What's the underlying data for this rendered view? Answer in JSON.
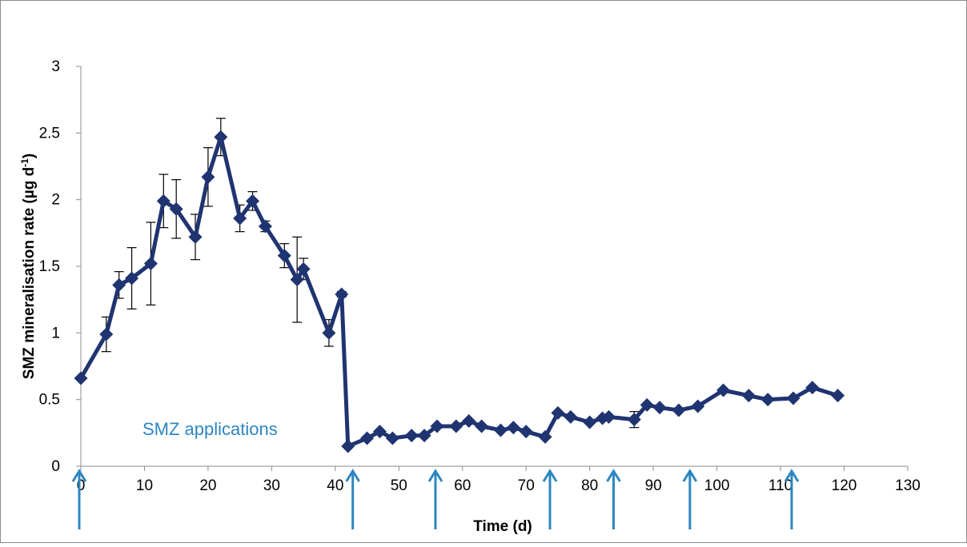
{
  "chart_data": {
    "type": "line",
    "xlabel": "Time (d)",
    "ylabel_main": "SMZ mineralisation rate (µg d",
    "ylabel_sup": "-1",
    "ylabel_close": ")",
    "xlim": [
      0,
      130
    ],
    "ylim": [
      0,
      3
    ],
    "x_ticks": [
      0,
      10,
      20,
      30,
      40,
      50,
      60,
      70,
      80,
      90,
      100,
      110,
      120,
      130
    ],
    "y_ticks": [
      0,
      0.5,
      1,
      1.5,
      2,
      2.5,
      3
    ],
    "y_tick_labels": [
      "0",
      "0.5",
      "1",
      "1.5",
      "2",
      "2.5",
      "3"
    ],
    "grid": false,
    "series_color": "#1f3470",
    "arrow_color": "#2e86c1",
    "annotation": "SMZ applications",
    "application_days": [
      0,
      43,
      56,
      74,
      84,
      96,
      112
    ],
    "x": [
      0,
      4,
      6,
      8,
      11,
      13,
      15,
      18,
      20,
      22,
      25,
      27,
      29,
      32,
      34,
      35,
      39,
      41,
      42,
      45,
      47,
      49,
      52,
      54,
      56,
      59,
      61,
      63,
      66,
      68,
      70,
      73,
      75,
      77,
      80,
      82,
      83,
      87,
      89,
      91,
      94,
      97,
      101,
      105,
      108,
      112,
      115,
      119
    ],
    "y": [
      0.66,
      0.99,
      1.36,
      1.41,
      1.52,
      1.99,
      1.93,
      1.72,
      2.17,
      2.47,
      1.86,
      1.99,
      1.8,
      1.58,
      1.4,
      1.48,
      1.0,
      1.29,
      0.15,
      0.21,
      0.26,
      0.21,
      0.23,
      0.23,
      0.3,
      0.3,
      0.34,
      0.3,
      0.27,
      0.29,
      0.26,
      0.22,
      0.4,
      0.37,
      0.33,
      0.36,
      0.37,
      0.35,
      0.46,
      0.44,
      0.42,
      0.45,
      0.57,
      0.53,
      0.5,
      0.51,
      0.59,
      0.53
    ],
    "error": [
      0,
      0.13,
      0.1,
      0.23,
      0.31,
      0.2,
      0.22,
      0.17,
      0.22,
      0.14,
      0.1,
      0.07,
      0.04,
      0.09,
      0.32,
      0.08,
      0.1,
      0.02,
      0,
      0,
      0,
      0,
      0,
      0,
      0,
      0,
      0,
      0,
      0,
      0,
      0,
      0,
      0,
      0,
      0,
      0,
      0,
      0.06,
      0,
      0,
      0,
      0,
      0,
      0,
      0,
      0,
      0,
      0
    ]
  }
}
